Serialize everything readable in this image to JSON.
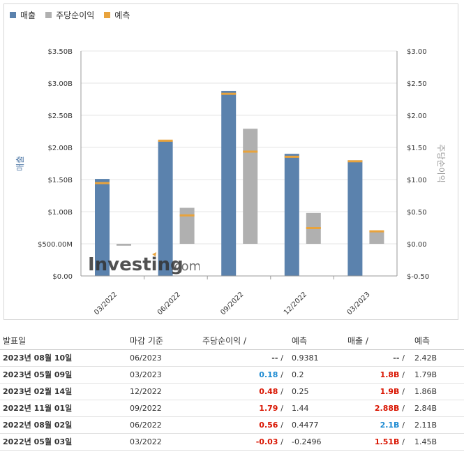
{
  "legend": [
    {
      "label": "매출",
      "color": "#5b82ad"
    },
    {
      "label": "주당순이익",
      "color": "#b0b0b0"
    },
    {
      "label": "예측",
      "color": "#e8a33d"
    }
  ],
  "watermark": {
    "brand": "Investing",
    "suffix": ".com"
  },
  "chart_data": {
    "type": "bar",
    "categories": [
      "03/2022",
      "06/2022",
      "09/2022",
      "12/2022",
      "03/2023"
    ],
    "ylabel": "매출",
    "y2label": "주당순이익",
    "ylim": [
      0,
      3.5
    ],
    "y2lim": [
      -0.5,
      3.0
    ],
    "y_ticks": [
      "$0.00",
      "$500.00M",
      "$1.00B",
      "$1.50B",
      "$2.00B",
      "$2.50B",
      "$3.00B",
      "$3.50B"
    ],
    "y_tick_values": [
      0,
      0.5,
      1.0,
      1.5,
      2.0,
      2.5,
      3.0,
      3.5
    ],
    "y2_ticks": [
      "$-0.50",
      "$0.00",
      "$0.50",
      "$1.00",
      "$1.50",
      "$2.00",
      "$2.50",
      "$3.00"
    ],
    "y2_tick_values": [
      -0.5,
      0,
      0.5,
      1.0,
      1.5,
      2.0,
      2.5,
      3.0
    ],
    "series": [
      {
        "name": "매출",
        "unit": "$B",
        "values": [
          1.51,
          2.1,
          2.88,
          1.9,
          1.8
        ],
        "forecast": [
          1.45,
          2.11,
          2.84,
          1.86,
          1.79
        ]
      },
      {
        "name": "주당순이익",
        "unit": "$",
        "values": [
          -0.03,
          0.56,
          1.79,
          0.48,
          0.18
        ],
        "forecast": [
          -0.2496,
          0.4477,
          1.44,
          0.25,
          0.2
        ]
      }
    ]
  },
  "table": {
    "headers": {
      "date": "발표일",
      "period": "마감 기준",
      "eps": "주당순이익",
      "eps_forecast": "예측",
      "revenue": "매출",
      "revenue_forecast": "예측",
      "sep": "/"
    },
    "rows": [
      {
        "date": "2023년 08월 10일",
        "period": "06/2023",
        "eps": "--",
        "eps_cls": "neutral",
        "eps_forecast": "0.9381",
        "revenue": "--",
        "rev_cls": "neutral",
        "revenue_forecast": "2.42B"
      },
      {
        "date": "2023년 05월 09일",
        "period": "03/2023",
        "eps": "0.18",
        "eps_cls": "blue",
        "eps_forecast": "0.2",
        "revenue": "1.8B",
        "rev_cls": "pos",
        "revenue_forecast": "1.79B"
      },
      {
        "date": "2023년 02월 14일",
        "period": "12/2022",
        "eps": "0.48",
        "eps_cls": "pos",
        "eps_forecast": "0.25",
        "revenue": "1.9B",
        "rev_cls": "pos",
        "revenue_forecast": "1.86B"
      },
      {
        "date": "2022년 11월 01일",
        "period": "09/2022",
        "eps": "1.79",
        "eps_cls": "pos",
        "eps_forecast": "1.44",
        "revenue": "2.88B",
        "rev_cls": "pos",
        "revenue_forecast": "2.84B"
      },
      {
        "date": "2022년 08월 02일",
        "period": "06/2022",
        "eps": "0.56",
        "eps_cls": "pos",
        "eps_forecast": "0.4477",
        "revenue": "2.1B",
        "rev_cls": "blue",
        "revenue_forecast": "2.11B"
      },
      {
        "date": "2022년 05월 03일",
        "period": "03/2022",
        "eps": "-0.03",
        "eps_cls": "neg",
        "eps_forecast": "-0.2496",
        "revenue": "1.51B",
        "rev_cls": "pos",
        "revenue_forecast": "1.45B"
      }
    ]
  }
}
